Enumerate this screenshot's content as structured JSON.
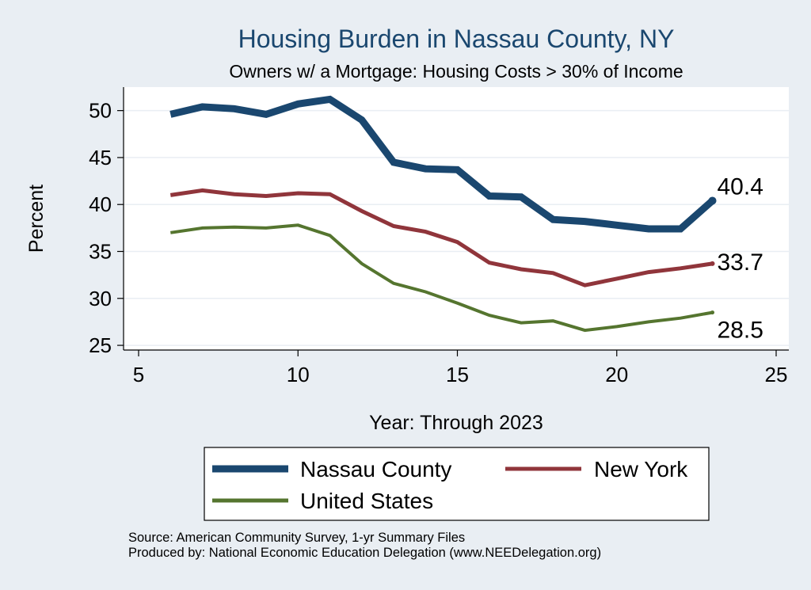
{
  "chart_data": {
    "type": "line",
    "title": "Housing Burden in Nassau County, NY",
    "subtitle": "Owners w/ a Mortgage: Housing Costs > 30% of Income",
    "xlabel": "Year: Through 2023",
    "ylabel": "Percent",
    "xlim": [
      5,
      25
    ],
    "ylim": [
      24.5,
      52.5
    ],
    "x_ticks": [
      5,
      10,
      15,
      20,
      25
    ],
    "y_ticks": [
      25,
      30,
      35,
      40,
      45,
      50
    ],
    "grid": true,
    "x": [
      6,
      7,
      8,
      9,
      10,
      11,
      12,
      13,
      14,
      15,
      16,
      17,
      18,
      19,
      20,
      21,
      22,
      23
    ],
    "series": [
      {
        "name": "Nassau County",
        "color": "#1a476f",
        "values": [
          49.6,
          50.4,
          50.2,
          49.6,
          50.7,
          51.2,
          49.0,
          44.5,
          43.8,
          43.7,
          40.9,
          40.8,
          38.4,
          38.2,
          37.8,
          37.4,
          37.4,
          40.4
        ],
        "end_label": "40.4"
      },
      {
        "name": "New York",
        "color": "#90353b",
        "values": [
          41.0,
          41.5,
          41.1,
          40.9,
          41.2,
          41.1,
          39.3,
          37.7,
          37.1,
          36.0,
          33.8,
          33.1,
          32.7,
          31.4,
          32.1,
          32.8,
          33.2,
          33.7
        ],
        "end_label": "33.7"
      },
      {
        "name": "United States",
        "color": "#55752f",
        "values": [
          37.0,
          37.5,
          37.6,
          37.5,
          37.8,
          36.7,
          33.7,
          31.6,
          30.7,
          29.5,
          28.2,
          27.4,
          27.6,
          26.6,
          27.0,
          27.5,
          27.9,
          28.5
        ],
        "end_label": "28.5"
      }
    ],
    "legend": {
      "position": "bottom",
      "entries": [
        "Nassau County",
        "New York",
        "United States"
      ]
    }
  },
  "footer": {
    "source": "Source: American Community Survey, 1-yr Summary Files",
    "produced_by": "Produced by: National Economic Education Delegation (www.NEEDelegation.org)"
  },
  "colors": {
    "background": "#e9eef3",
    "plot_background": "#ffffff",
    "title": "#1a476f",
    "grid": "#e9eef3"
  }
}
